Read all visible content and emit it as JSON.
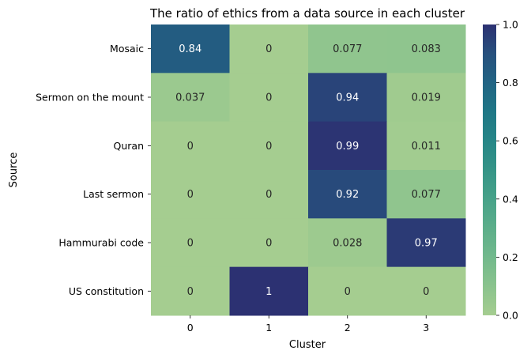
{
  "chart_data": {
    "type": "heatmap",
    "title": "The ratio of ethics from a data source in each cluster",
    "xlabel": "Cluster",
    "ylabel": "Source",
    "x_categories": [
      "0",
      "1",
      "2",
      "3"
    ],
    "y_categories": [
      "Mosaic",
      "Sermon on the mount",
      "Quran",
      "Last sermon",
      "Hammurabi code",
      "US constitution"
    ],
    "values": [
      [
        0.84,
        0,
        0.077,
        0.083
      ],
      [
        0.037,
        0,
        0.94,
        0.019
      ],
      [
        0,
        0,
        0.99,
        0.011
      ],
      [
        0,
        0,
        0.92,
        0.077
      ],
      [
        0,
        0,
        0.028,
        0.97
      ],
      [
        0,
        1,
        0,
        0
      ]
    ],
    "value_labels": [
      [
        "0.84",
        "0",
        "0.077",
        "0.083"
      ],
      [
        "0.037",
        "0",
        "0.94",
        "0.019"
      ],
      [
        "0",
        "0",
        "0.99",
        "0.011"
      ],
      [
        "0",
        "0",
        "0.92",
        "0.077"
      ],
      [
        "0",
        "0",
        "0.028",
        "0.97"
      ],
      [
        "0",
        "1",
        "0",
        "0"
      ]
    ],
    "colorbar": {
      "range": [
        0,
        1
      ],
      "ticks": [
        "0.0",
        "0.2",
        "0.4",
        "0.6",
        "0.8",
        "1.0"
      ],
      "colormap": "crest",
      "low_color": "#a5cd90",
      "high_color": "#2c3172"
    }
  }
}
